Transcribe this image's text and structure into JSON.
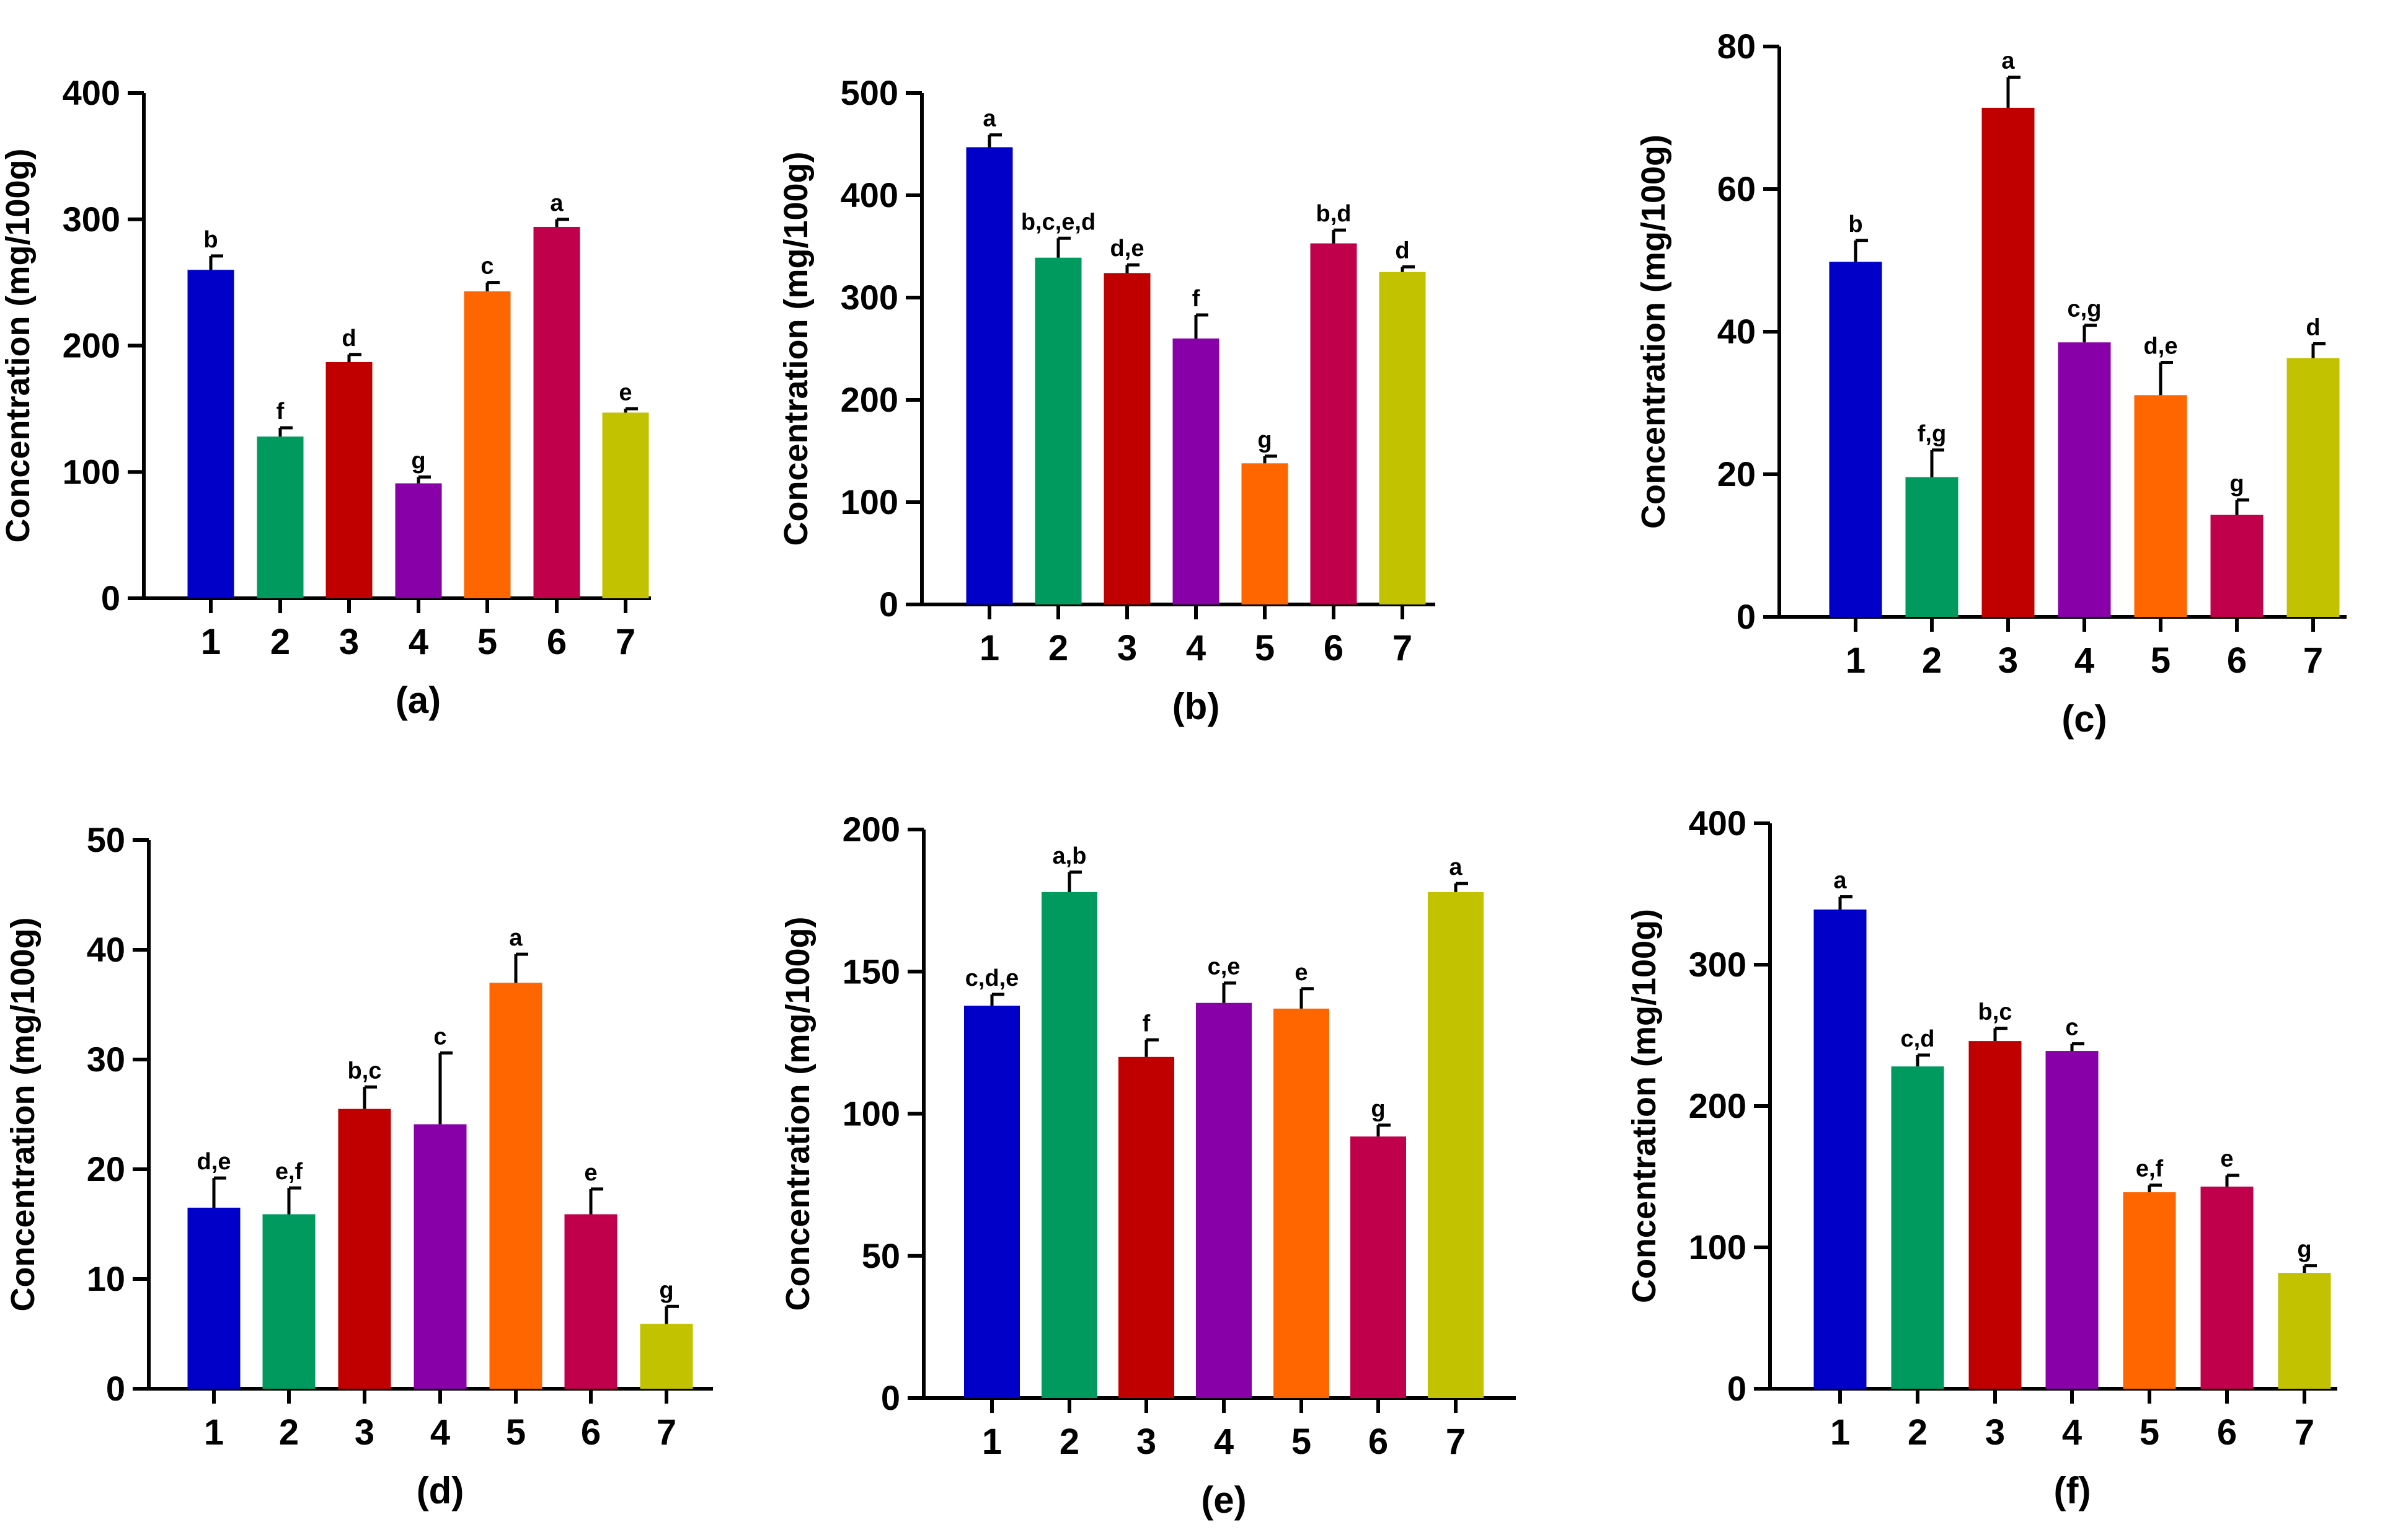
{
  "colors": [
    "#0000c8",
    "#009a5e",
    "#c00000",
    "#8800a8",
    "#ff6600",
    "#c0004a",
    "#c2c200"
  ],
  "chart_data": [
    {
      "type": "bar",
      "caption": "(a)",
      "ylabel": "Concentration (mg/100g)",
      "categories": [
        "1",
        "2",
        "3",
        "4",
        "5",
        "6",
        "7"
      ],
      "ylim": [
        0,
        400
      ],
      "yticks": [
        0,
        100,
        200,
        300,
        400
      ],
      "values": [
        260,
        128,
        187,
        91,
        243,
        294,
        147
      ],
      "errors": [
        11,
        7,
        6,
        5,
        7,
        6,
        3
      ],
      "letters": [
        "b",
        "f",
        "d",
        "g",
        "c",
        "a",
        "e"
      ]
    },
    {
      "type": "bar",
      "caption": "(b)",
      "ylabel": "Concentration (mg/100g)",
      "categories": [
        "1",
        "2",
        "3",
        "4",
        "5",
        "6",
        "7"
      ],
      "ylim": [
        0,
        500
      ],
      "yticks": [
        0,
        100,
        200,
        300,
        400,
        500
      ],
      "values": [
        447,
        339,
        324,
        260,
        138,
        353,
        325
      ],
      "errors": [
        12,
        19,
        8,
        23,
        7,
        13,
        5
      ],
      "letters": [
        "a",
        "b,c,e,d",
        "d,e",
        "f",
        "g",
        "b,d",
        "d"
      ]
    },
    {
      "type": "bar",
      "caption": "(c)",
      "ylabel": "Concentration (mg/100g)",
      "categories": [
        "1",
        "2",
        "3",
        "4",
        "5",
        "6",
        "7"
      ],
      "ylim": [
        0,
        80
      ],
      "yticks": [
        0,
        20,
        40,
        60,
        80
      ],
      "values": [
        49.8,
        19.6,
        71.4,
        38.5,
        31.1,
        14.3,
        36.3
      ],
      "errors": [
        3,
        3.8,
        4.3,
        2.4,
        4.6,
        2.1,
        2
      ],
      "letters": [
        "b",
        "f,g",
        "a",
        "c,g",
        "d,e",
        "g",
        "d"
      ]
    },
    {
      "type": "bar",
      "caption": "(d)",
      "ylabel": "Concentration (mg/100g)",
      "categories": [
        "1",
        "2",
        "3",
        "4",
        "5",
        "6",
        "7"
      ],
      "ylim": [
        0,
        50
      ],
      "yticks": [
        0,
        10,
        20,
        30,
        40,
        50
      ],
      "values": [
        16.5,
        15.9,
        25.5,
        24.1,
        37.0,
        15.9,
        5.9
      ],
      "errors": [
        2.7,
        2.4,
        2.0,
        6.5,
        2.6,
        2.3,
        1.6
      ],
      "letters": [
        "d,e",
        "e,f",
        "b,c",
        "c",
        "a",
        "e",
        "g"
      ]
    },
    {
      "type": "bar",
      "caption": "(e)",
      "ylabel": "Concentration (mg/100g)",
      "categories": [
        "1",
        "2",
        "3",
        "4",
        "5",
        "6",
        "7"
      ],
      "ylim": [
        0,
        200
      ],
      "yticks": [
        0,
        50,
        100,
        150,
        200
      ],
      "values": [
        138,
        178,
        120,
        139,
        137,
        92,
        178
      ],
      "errors": [
        4,
        7,
        6,
        7,
        7,
        4,
        3
      ],
      "letters": [
        "c,d,e",
        "a,b",
        "f",
        "c,e",
        "e",
        "g",
        "a"
      ]
    },
    {
      "type": "bar",
      "caption": "(f)",
      "ylabel": "Concentration (mg/100g)",
      "categories": [
        "1",
        "2",
        "3",
        "4",
        "5",
        "6",
        "7"
      ],
      "ylim": [
        0,
        400
      ],
      "yticks": [
        0,
        100,
        200,
        300,
        400
      ],
      "values": [
        339,
        228,
        246,
        239,
        139,
        143,
        82
      ],
      "errors": [
        9,
        8,
        9,
        5,
        5,
        8,
        5
      ],
      "letters": [
        "a",
        "c,d",
        "b,c",
        "c",
        "e,f",
        "e",
        "g"
      ]
    }
  ]
}
